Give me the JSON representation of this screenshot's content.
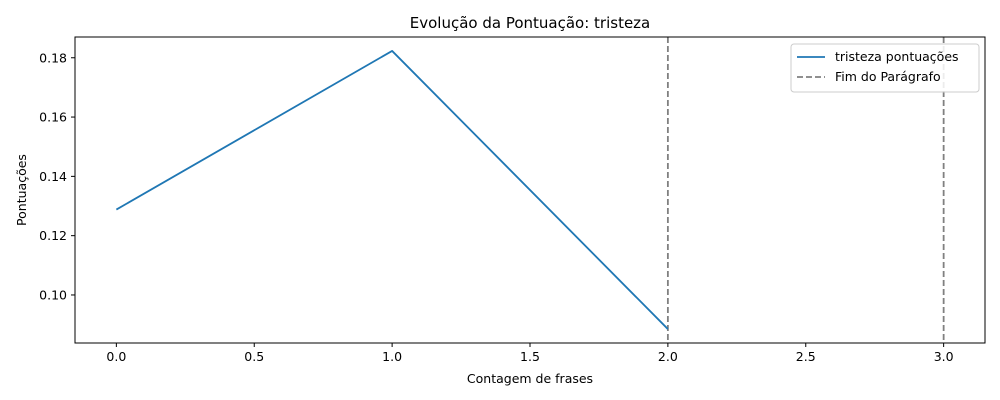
{
  "chart_data": {
    "type": "line",
    "title": "Evolução da Pontuação: tristeza",
    "xlabel": "Contagem de frases",
    "ylabel": "Pontuações",
    "xlim": [
      -0.15,
      3.15
    ],
    "ylim": [
      0.0838,
      0.187
    ],
    "xticks": [
      0.0,
      0.5,
      1.0,
      1.5,
      2.0,
      2.5,
      3.0
    ],
    "xtick_labels": [
      "0.0",
      "0.5",
      "1.0",
      "1.5",
      "2.0",
      "2.5",
      "3.0"
    ],
    "yticks": [
      0.1,
      0.12,
      0.14,
      0.16,
      0.18
    ],
    "ytick_labels": [
      "0.10",
      "0.12",
      "0.14",
      "0.16",
      "0.18"
    ],
    "grid": false,
    "legend_position": "top-right",
    "series": [
      {
        "name": "tristeza pontuações",
        "color": "#1f77b4",
        "x": [
          0,
          1,
          2
        ],
        "y": [
          0.1288,
          0.1823,
          0.0885
        ]
      }
    ],
    "vlines": {
      "name": "Fim do Parágrafo",
      "color": "#808080",
      "style": "dashed",
      "x": [
        2,
        3
      ]
    }
  }
}
